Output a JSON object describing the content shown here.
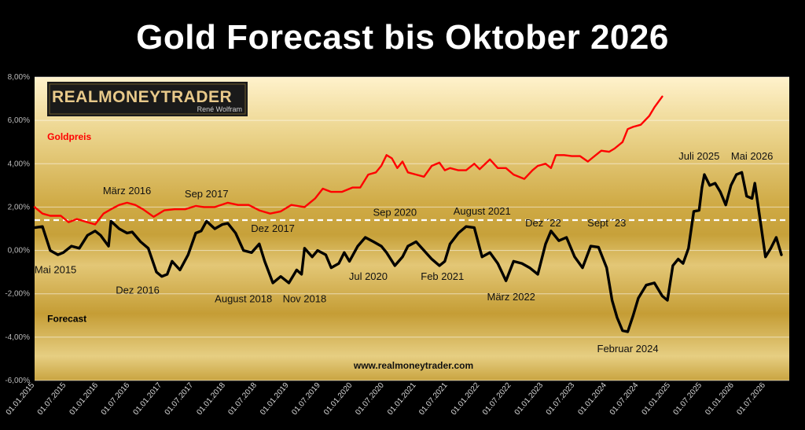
{
  "title": "Gold Forecast bis Oktober 2026",
  "logo": {
    "name": "REALMONEYTRADER",
    "sub": "René Wolfram"
  },
  "website": "www.realmoneytrader.com",
  "colors": {
    "goldpreis": "#ff0000",
    "forecast": "#000000",
    "bg_gold": "#d2b24c",
    "reference_line": "#ffffff"
  },
  "chart_data": {
    "type": "line",
    "title": "Gold Forecast bis Oktober 2026",
    "ylim": [
      -6,
      8
    ],
    "y_unit": "%",
    "y_ticks": [
      "-6,00%",
      "-4,00%",
      "-2,00%",
      "0,00%",
      "2,00%",
      "4,00%",
      "6,00%",
      "8,00%"
    ],
    "x_range": [
      "2015-01-01",
      "2026-11-15"
    ],
    "x_ticks": [
      "01.01.2015",
      "01.07.2015",
      "01.01.2016",
      "01.07.2016",
      "01.01.2017",
      "01.07.2017",
      "01.01.2018",
      "01.07.2018",
      "01.01.2019",
      "01.07.2019",
      "01.01.2020",
      "01.07.2020",
      "01.01.2021",
      "01.07.2021",
      "01.01.2022",
      "01.07.2022",
      "01.01.2023",
      "01.07.2023",
      "01.01.2024",
      "01.07.2024",
      "01.01.2025",
      "01.07.2025",
      "01.01.2026",
      "01.07.2026"
    ],
    "reference_line": {
      "y": 1.4,
      "style": "dashed"
    },
    "series": [
      {
        "name": "Goldpreis",
        "color": "#ff0000",
        "points": [
          [
            "2015-01-01",
            2.0
          ],
          [
            "2015-02-15",
            1.7
          ],
          [
            "2015-04-01",
            1.6
          ],
          [
            "2015-06-01",
            1.6
          ],
          [
            "2015-07-15",
            1.3
          ],
          [
            "2015-09-01",
            1.45
          ],
          [
            "2015-11-01",
            1.3
          ],
          [
            "2015-12-15",
            1.2
          ],
          [
            "2016-02-01",
            1.7
          ],
          [
            "2016-03-15",
            1.9
          ],
          [
            "2016-05-01",
            2.1
          ],
          [
            "2016-06-15",
            2.2
          ],
          [
            "2016-08-01",
            2.1
          ],
          [
            "2016-09-15",
            1.9
          ],
          [
            "2016-11-15",
            1.55
          ],
          [
            "2017-01-15",
            1.85
          ],
          [
            "2017-03-15",
            1.9
          ],
          [
            "2017-05-15",
            1.9
          ],
          [
            "2017-07-15",
            2.05
          ],
          [
            "2017-09-01",
            2.0
          ],
          [
            "2017-11-01",
            2.0
          ],
          [
            "2018-01-15",
            2.2
          ],
          [
            "2018-03-15",
            2.1
          ],
          [
            "2018-05-15",
            2.1
          ],
          [
            "2018-07-15",
            1.85
          ],
          [
            "2018-09-15",
            1.7
          ],
          [
            "2018-11-15",
            1.8
          ],
          [
            "2019-01-15",
            2.1
          ],
          [
            "2019-04-01",
            2.0
          ],
          [
            "2019-06-01",
            2.4
          ],
          [
            "2019-07-15",
            2.85
          ],
          [
            "2019-09-01",
            2.7
          ],
          [
            "2019-11-01",
            2.7
          ],
          [
            "2020-01-01",
            2.9
          ],
          [
            "2020-02-15",
            2.9
          ],
          [
            "2020-04-01",
            3.5
          ],
          [
            "2020-05-15",
            3.6
          ],
          [
            "2020-06-15",
            3.9
          ],
          [
            "2020-07-15",
            4.4
          ],
          [
            "2020-08-15",
            4.25
          ],
          [
            "2020-09-15",
            3.8
          ],
          [
            "2020-10-15",
            4.1
          ],
          [
            "2020-11-15",
            3.6
          ],
          [
            "2021-01-01",
            3.5
          ],
          [
            "2021-02-15",
            3.4
          ],
          [
            "2021-04-01",
            3.9
          ],
          [
            "2021-05-15",
            4.05
          ],
          [
            "2021-06-15",
            3.7
          ],
          [
            "2021-07-15",
            3.8
          ],
          [
            "2021-09-01",
            3.7
          ],
          [
            "2021-10-15",
            3.7
          ],
          [
            "2021-12-01",
            4.0
          ],
          [
            "2022-01-01",
            3.75
          ],
          [
            "2022-03-01",
            4.2
          ],
          [
            "2022-04-15",
            3.8
          ],
          [
            "2022-06-01",
            3.8
          ],
          [
            "2022-07-15",
            3.5
          ],
          [
            "2022-09-15",
            3.3
          ],
          [
            "2022-11-01",
            3.7
          ],
          [
            "2022-12-01",
            3.9
          ],
          [
            "2023-01-15",
            4.0
          ],
          [
            "2023-02-15",
            3.8
          ],
          [
            "2023-03-15",
            4.4
          ],
          [
            "2023-05-01",
            4.4
          ],
          [
            "2023-06-15",
            4.35
          ],
          [
            "2023-08-01",
            4.35
          ],
          [
            "2023-09-15",
            4.1
          ],
          [
            "2023-10-15",
            4.3
          ],
          [
            "2023-12-01",
            4.6
          ],
          [
            "2024-01-15",
            4.55
          ],
          [
            "2024-02-15",
            4.7
          ],
          [
            "2024-04-01",
            5.0
          ],
          [
            "2024-05-01",
            5.6
          ],
          [
            "2024-06-01",
            5.7
          ],
          [
            "2024-07-15",
            5.8
          ],
          [
            "2024-09-01",
            6.2
          ],
          [
            "2024-10-01",
            6.6
          ],
          [
            "2024-11-15",
            7.1
          ]
        ]
      },
      {
        "name": "Forecast",
        "color": "#000000",
        "points": [
          [
            "2015-01-01",
            1.05
          ],
          [
            "2015-02-15",
            1.1
          ],
          [
            "2015-04-01",
            0.0
          ],
          [
            "2015-05-15",
            -0.2
          ],
          [
            "2015-06-15",
            -0.1
          ],
          [
            "2015-08-01",
            0.2
          ],
          [
            "2015-09-15",
            0.1
          ],
          [
            "2015-11-01",
            0.7
          ],
          [
            "2015-12-15",
            0.9
          ],
          [
            "2016-01-15",
            0.7
          ],
          [
            "2016-03-01",
            0.2
          ],
          [
            "2016-03-15",
            1.35
          ],
          [
            "2016-05-01",
            1.0
          ],
          [
            "2016-06-15",
            0.8
          ],
          [
            "2016-07-15",
            0.85
          ],
          [
            "2016-09-01",
            0.4
          ],
          [
            "2016-10-15",
            0.1
          ],
          [
            "2016-12-01",
            -1.0
          ],
          [
            "2017-01-01",
            -1.2
          ],
          [
            "2017-02-01",
            -1.1
          ],
          [
            "2017-03-01",
            -0.5
          ],
          [
            "2017-04-15",
            -0.9
          ],
          [
            "2017-06-01",
            -0.2
          ],
          [
            "2017-07-15",
            0.8
          ],
          [
            "2017-08-15",
            0.9
          ],
          [
            "2017-09-15",
            1.35
          ],
          [
            "2017-11-01",
            1.0
          ],
          [
            "2017-12-15",
            1.2
          ],
          [
            "2018-01-15",
            1.25
          ],
          [
            "2018-03-01",
            0.8
          ],
          [
            "2018-04-15",
            0.0
          ],
          [
            "2018-06-01",
            -0.1
          ],
          [
            "2018-07-15",
            0.3
          ],
          [
            "2018-08-15",
            -0.5
          ],
          [
            "2018-10-01",
            -1.5
          ],
          [
            "2018-11-15",
            -1.2
          ],
          [
            "2019-01-01",
            -1.5
          ],
          [
            "2019-02-15",
            -0.9
          ],
          [
            "2019-03-15",
            -1.1
          ],
          [
            "2019-04-01",
            0.1
          ],
          [
            "2019-05-15",
            -0.3
          ],
          [
            "2019-06-15",
            0.0
          ],
          [
            "2019-08-01",
            -0.2
          ],
          [
            "2019-09-01",
            -0.8
          ],
          [
            "2019-10-15",
            -0.6
          ],
          [
            "2019-11-15",
            -0.1
          ],
          [
            "2019-12-15",
            -0.5
          ],
          [
            "2020-02-01",
            0.2
          ],
          [
            "2020-03-15",
            0.6
          ],
          [
            "2020-05-01",
            0.4
          ],
          [
            "2020-06-15",
            0.2
          ],
          [
            "2020-07-15",
            -0.1
          ],
          [
            "2020-09-01",
            -0.7
          ],
          [
            "2020-10-15",
            -0.3
          ],
          [
            "2020-11-15",
            0.2
          ],
          [
            "2021-01-01",
            0.4
          ],
          [
            "2021-02-15",
            0.0
          ],
          [
            "2021-04-01",
            -0.4
          ],
          [
            "2021-05-15",
            -0.7
          ],
          [
            "2021-06-15",
            -0.5
          ],
          [
            "2021-07-15",
            0.3
          ],
          [
            "2021-09-01",
            0.8
          ],
          [
            "2021-10-15",
            1.1
          ],
          [
            "2021-12-01",
            1.05
          ],
          [
            "2022-01-15",
            -0.3
          ],
          [
            "2022-03-01",
            -0.1
          ],
          [
            "2022-04-15",
            -0.6
          ],
          [
            "2022-06-01",
            -1.4
          ],
          [
            "2022-07-15",
            -0.5
          ],
          [
            "2022-09-01",
            -0.6
          ],
          [
            "2022-10-15",
            -0.8
          ],
          [
            "2022-12-01",
            -1.1
          ],
          [
            "2023-01-15",
            0.3
          ],
          [
            "2023-02-15",
            0.9
          ],
          [
            "2023-04-01",
            0.45
          ],
          [
            "2023-05-15",
            0.6
          ],
          [
            "2023-07-01",
            -0.3
          ],
          [
            "2023-08-15",
            -0.8
          ],
          [
            "2023-10-01",
            0.2
          ],
          [
            "2023-11-15",
            0.15
          ],
          [
            "2024-01-01",
            -0.8
          ],
          [
            "2024-02-01",
            -2.3
          ],
          [
            "2024-03-01",
            -3.1
          ],
          [
            "2024-04-01",
            -3.7
          ],
          [
            "2024-05-01",
            -3.75
          ],
          [
            "2024-06-01",
            -3.0
          ],
          [
            "2024-07-01",
            -2.2
          ],
          [
            "2024-08-15",
            -1.6
          ],
          [
            "2024-10-01",
            -1.5
          ],
          [
            "2024-11-15",
            -2.1
          ],
          [
            "2024-12-15",
            -2.3
          ],
          [
            "2025-01-15",
            -0.7
          ],
          [
            "2025-02-15",
            -0.4
          ],
          [
            "2025-03-15",
            -0.6
          ],
          [
            "2025-04-15",
            0.1
          ],
          [
            "2025-05-15",
            1.8
          ],
          [
            "2025-06-15",
            1.85
          ],
          [
            "2025-07-01",
            2.9
          ],
          [
            "2025-07-15",
            3.5
          ],
          [
            "2025-08-15",
            3.0
          ],
          [
            "2025-09-15",
            3.1
          ],
          [
            "2025-10-15",
            2.7
          ],
          [
            "2025-11-15",
            2.1
          ],
          [
            "2025-12-15",
            3.0
          ],
          [
            "2026-01-15",
            3.5
          ],
          [
            "2026-02-15",
            3.6
          ],
          [
            "2026-03-15",
            2.5
          ],
          [
            "2026-04-15",
            2.4
          ],
          [
            "2026-05-01",
            3.1
          ],
          [
            "2026-06-01",
            1.4
          ],
          [
            "2026-07-01",
            -0.3
          ],
          [
            "2026-08-01",
            0.1
          ],
          [
            "2026-09-01",
            0.6
          ],
          [
            "2026-10-01",
            -0.2
          ]
        ]
      }
    ],
    "series_labels": [
      {
        "series": "Goldpreis",
        "text": "Goldpreis",
        "x": "2015-03-15",
        "y": 5.1,
        "color": "#ff0000"
      },
      {
        "series": "Forecast",
        "text": "Forecast",
        "x": "2015-03-15",
        "y": -3.3,
        "color": "#000000"
      }
    ],
    "annotations": [
      {
        "text": "Mai 2015",
        "x": "2015-05-01",
        "y": -1.05
      },
      {
        "text": "März 2016",
        "x": "2016-06-15",
        "y": 2.6
      },
      {
        "text": "Dez 2016",
        "x": "2016-08-15",
        "y": -2.0
      },
      {
        "text": "Sep 2017",
        "x": "2017-09-15",
        "y": 2.45
      },
      {
        "text": "Dez 2017",
        "x": "2018-10-01",
        "y": 0.85
      },
      {
        "text": "August 2018",
        "x": "2018-04-15",
        "y": -2.4
      },
      {
        "text": "Nov 2018",
        "x": "2019-04-01",
        "y": -2.4
      },
      {
        "text": "Jul 2020",
        "x": "2020-04-01",
        "y": -1.35
      },
      {
        "text": "Sep 2020",
        "x": "2020-09-01",
        "y": 1.6
      },
      {
        "text": "August 2021",
        "x": "2022-01-15",
        "y": 1.65
      },
      {
        "text": "Feb 2021",
        "x": "2021-06-01",
        "y": -1.35
      },
      {
        "text": "März 2022",
        "x": "2022-07-01",
        "y": -2.3
      },
      {
        "text": "Dez ´22",
        "x": "2023-01-01",
        "y": 1.1
      },
      {
        "text": "Sept ´23",
        "x": "2024-01-01",
        "y": 1.1
      },
      {
        "text": "Februar 2024",
        "x": "2024-05-01",
        "y": -4.7
      },
      {
        "text": "Juli 2025",
        "x": "2025-06-15",
        "y": 4.2
      },
      {
        "text": "Mai 2026",
        "x": "2026-04-15",
        "y": 4.2
      }
    ]
  }
}
